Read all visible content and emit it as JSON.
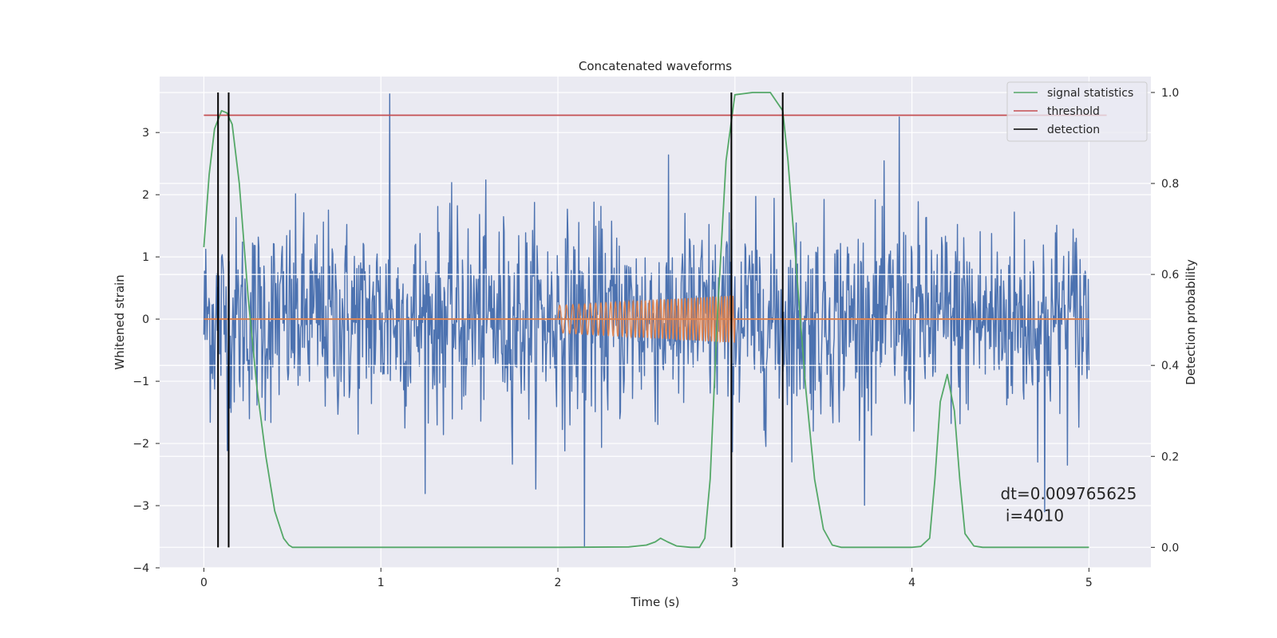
{
  "chart_data": {
    "type": "line",
    "title": "Concatenated waveforms",
    "xlabel": "Time (s)",
    "ylabel": "Whitened strain",
    "y2label": "Detection probability",
    "xlim": [
      -0.25,
      5.35
    ],
    "ylim": [
      -4.0,
      3.9
    ],
    "y2lim": [
      -0.045,
      1.035
    ],
    "grid": true,
    "legend_position": "top-right",
    "xticks": [
      0,
      1,
      2,
      3,
      4,
      5
    ],
    "yticks": [
      -4,
      -3,
      -2,
      -1,
      0,
      1,
      2,
      3
    ],
    "y2ticks": [
      0.0,
      0.2,
      0.4,
      0.6,
      0.8,
      1.0
    ],
    "xtick_labels": [
      "0",
      "1",
      "2",
      "3",
      "4",
      "5"
    ],
    "ytick_labels": [
      "−4",
      "−3",
      "−2",
      "−1",
      "0",
      "1",
      "2",
      "3"
    ],
    "y2tick_labels": [
      "0.0",
      "0.2",
      "0.4",
      "0.6",
      "0.8",
      "1.0"
    ],
    "noise": {
      "color": "#4c72b0",
      "x_range": [
        0,
        5
      ],
      "typical_amplitude": 1.3,
      "max": 3.62,
      "min": -3.65,
      "peaks": [
        {
          "x": 1.05,
          "y": 3.62
        },
        {
          "x": 3.93,
          "y": 3.25
        },
        {
          "x": 2.15,
          "y": -3.65
        },
        {
          "x": 4.75,
          "y": -3.1
        }
      ]
    },
    "waveform": {
      "color": "#dd8452",
      "x_range": [
        2.0,
        3.0
      ],
      "amplitude_start": 0.22,
      "amplitude_end": 0.38,
      "baseline": 0
    },
    "series": [
      {
        "name": "signal statistics",
        "axis": "right",
        "color": "#55a868",
        "x": [
          0.0,
          0.03,
          0.06,
          0.1,
          0.13,
          0.16,
          0.2,
          0.25,
          0.3,
          0.35,
          0.4,
          0.45,
          0.48,
          0.5,
          0.55,
          1.0,
          2.0,
          2.4,
          2.5,
          2.55,
          2.58,
          2.62,
          2.67,
          2.75,
          2.8,
          2.83,
          2.86,
          2.9,
          2.95,
          3.0,
          3.1,
          3.2,
          3.27,
          3.3,
          3.35,
          3.4,
          3.45,
          3.5,
          3.55,
          3.6,
          4.0,
          4.05,
          4.1,
          4.13,
          4.16,
          4.2,
          4.24,
          4.27,
          4.3,
          4.35,
          4.4,
          5.0
        ],
        "values": [
          0.66,
          0.82,
          0.92,
          0.96,
          0.955,
          0.93,
          0.8,
          0.55,
          0.35,
          0.2,
          0.08,
          0.02,
          0.005,
          0.0,
          0.0,
          0.0,
          0.0,
          0.001,
          0.005,
          0.012,
          0.02,
          0.012,
          0.003,
          0.0,
          0.0,
          0.02,
          0.15,
          0.5,
          0.85,
          0.995,
          1.0,
          1.0,
          0.96,
          0.85,
          0.6,
          0.35,
          0.15,
          0.04,
          0.005,
          0.0,
          0.0,
          0.002,
          0.02,
          0.15,
          0.32,
          0.38,
          0.3,
          0.15,
          0.03,
          0.003,
          0.0,
          0.0
        ]
      },
      {
        "name": "threshold",
        "axis": "right",
        "color": "#c44e52",
        "x": [
          0.0,
          5.1
        ],
        "values": [
          0.95,
          0.95
        ]
      },
      {
        "name": "detection",
        "axis": "right",
        "color": "#000000",
        "type": "vlines",
        "x": [
          0.08,
          0.14,
          2.98,
          3.27
        ],
        "ymin": 0.0,
        "ymax": 1.0
      }
    ],
    "annotations": [
      {
        "text": "dt=0.009765625",
        "x": 4.5,
        "y": -2.9
      },
      {
        "text": " i=4010",
        "x": 4.5,
        "y": -3.25
      }
    ]
  }
}
